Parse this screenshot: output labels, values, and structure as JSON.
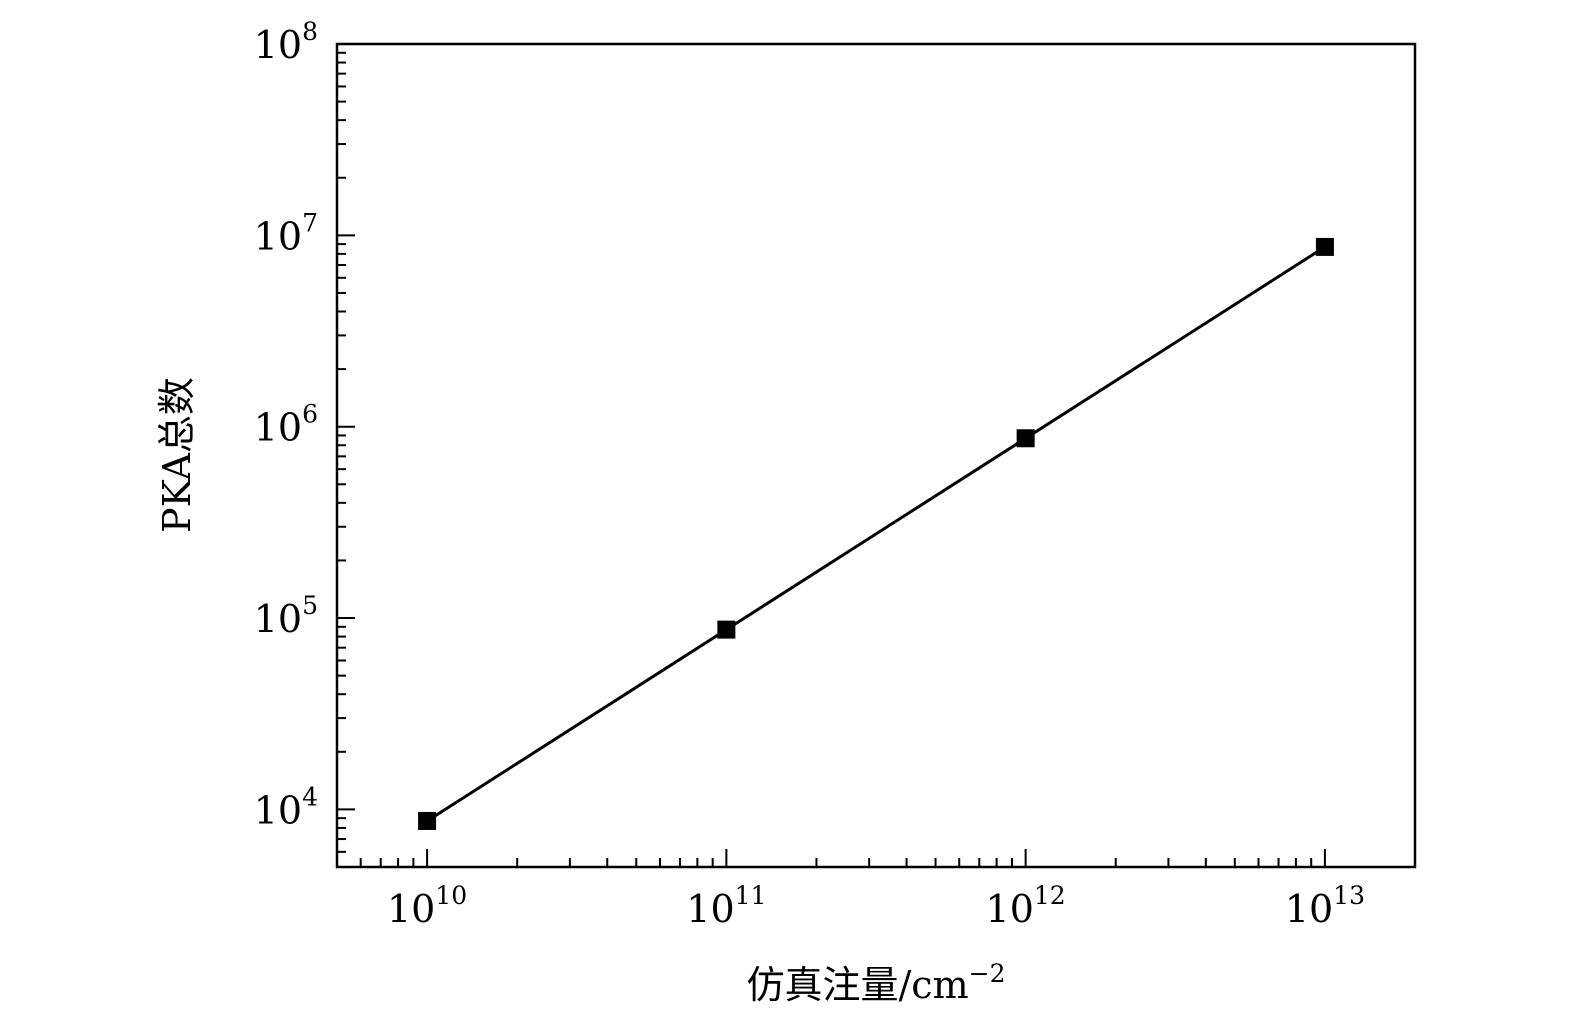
{
  "chart_data": {
    "type": "line",
    "xscale": "log",
    "yscale": "log",
    "xlabel": "仿真注量/cm",
    "xlabel_sup": "−2",
    "ylabel": "PKA总数",
    "xlim": [
      5000000000,
      20000000000000
    ],
    "ylim": [
      5000,
      100000000
    ],
    "x_ticks": [
      {
        "base": "10",
        "exp": "10",
        "value": 10000000000
      },
      {
        "base": "10",
        "exp": "11",
        "value": 100000000000
      },
      {
        "base": "10",
        "exp": "12",
        "value": 1000000000000
      },
      {
        "base": "10",
        "exp": "13",
        "value": 10000000000000
      }
    ],
    "y_ticks": [
      {
        "base": "10",
        "exp": "4",
        "value": 10000
      },
      {
        "base": "10",
        "exp": "5",
        "value": 100000
      },
      {
        "base": "10",
        "exp": "6",
        "value": 1000000
      },
      {
        "base": "10",
        "exp": "7",
        "value": 10000000
      },
      {
        "base": "10",
        "exp": "8",
        "value": 100000000
      }
    ],
    "series": [
      {
        "marker": "square",
        "color": "#000000",
        "points": [
          {
            "x": 10000000000,
            "y": 8700
          },
          {
            "x": 100000000000,
            "y": 87000
          },
          {
            "x": 1000000000000,
            "y": 870000
          },
          {
            "x": 10000000000000,
            "y": 8700000
          }
        ]
      }
    ],
    "grid": false,
    "legend": "none"
  }
}
